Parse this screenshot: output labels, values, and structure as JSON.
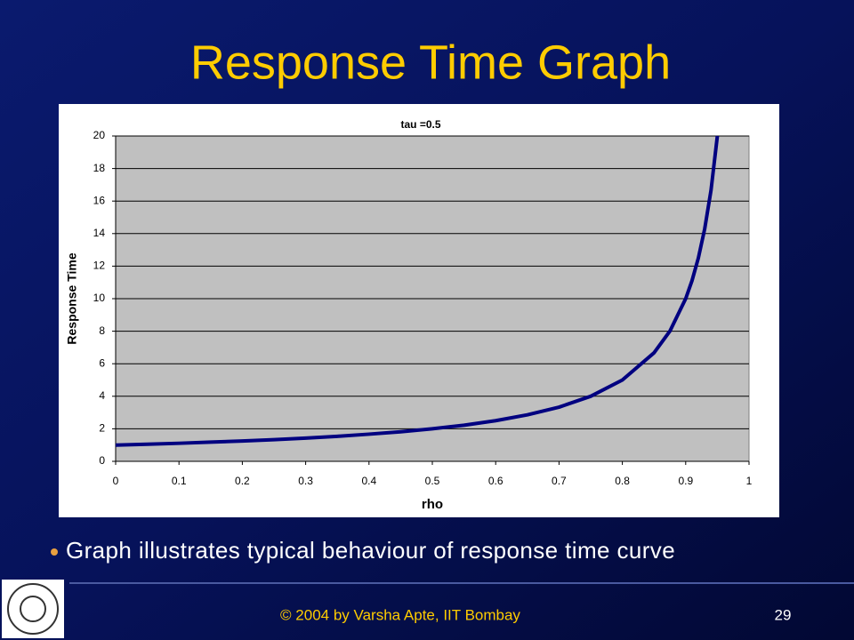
{
  "slide": {
    "title": "Response Time Graph",
    "bullet": "Graph illustrates typical behaviour of response time curve",
    "footer": "© 2004 by Varsha Apte, IIT Bombay",
    "page_number": "29"
  },
  "chart_data": {
    "type": "line",
    "title": "tau =0.5",
    "x_label": "rho",
    "y_label": "Response Time",
    "x": [
      0,
      0.05,
      0.1,
      0.15,
      0.2,
      0.25,
      0.3,
      0.35,
      0.4,
      0.45,
      0.5,
      0.55,
      0.6,
      0.65,
      0.7,
      0.75,
      0.8,
      0.85,
      0.875,
      0.9,
      0.91,
      0.92,
      0.93,
      0.94,
      0.95
    ],
    "series": [
      {
        "name": "Response Time",
        "color": "#000080",
        "values": [
          1,
          1.05,
          1.11,
          1.18,
          1.25,
          1.33,
          1.43,
          1.54,
          1.67,
          1.82,
          2,
          2.22,
          2.5,
          2.86,
          3.33,
          4,
          5,
          6.67,
          8,
          10,
          11.11,
          12.5,
          14.29,
          16.67,
          20
        ]
      }
    ],
    "xlim": [
      0,
      1
    ],
    "xticks": [
      0,
      0.1,
      0.2,
      0.3,
      0.4,
      0.5,
      0.6,
      0.7,
      0.8,
      0.9,
      1
    ],
    "ylim": [
      0,
      20
    ],
    "yticks": [
      0,
      2,
      4,
      6,
      8,
      10,
      12,
      14,
      16,
      18,
      20
    ],
    "grid": true
  }
}
